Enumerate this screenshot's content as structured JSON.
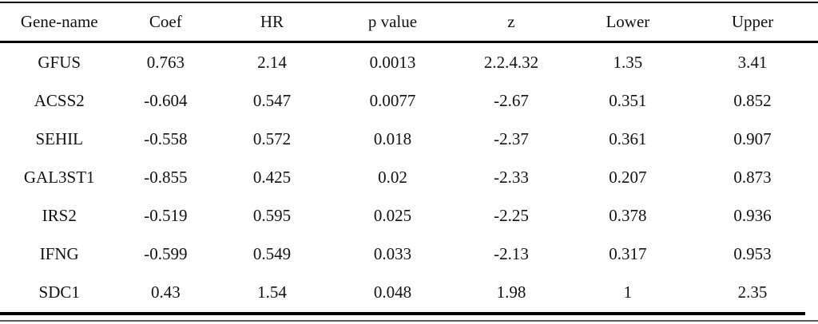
{
  "table": {
    "columns": [
      "Gene-name",
      "Coef",
      "HR",
      "p value",
      "z",
      "Lower",
      "Upper"
    ],
    "rows": [
      [
        "GFUS",
        "0.763",
        "2.14",
        "0.0013",
        "2.2.4.32",
        "1.35",
        "3.41"
      ],
      [
        "ACSS2",
        "-0.604",
        "0.547",
        "0.0077",
        "-2.67",
        "0.351",
        "0.852"
      ],
      [
        "SEHIL",
        "-0.558",
        "0.572",
        "0.018",
        "-2.37",
        "0.361",
        "0.907"
      ],
      [
        "GAL3ST1",
        "-0.855",
        "0.425",
        "0.02",
        "-2.33",
        "0.207",
        "0.873"
      ],
      [
        "IRS2",
        "-0.519",
        "0.595",
        "0.025",
        "-2.25",
        "0.378",
        "0.936"
      ],
      [
        "IFNG",
        "-0.599",
        "0.549",
        "0.033",
        "-2.13",
        "0.317",
        "0.953"
      ],
      [
        "SDC1",
        "0.43",
        "1.54",
        "0.048",
        "1.98",
        "1",
        "2.35"
      ]
    ]
  },
  "colors": {
    "text": "#111111",
    "rule_heavy": "#000000",
    "rule_light": "#5a5a5a",
    "background": "#ffffff"
  }
}
